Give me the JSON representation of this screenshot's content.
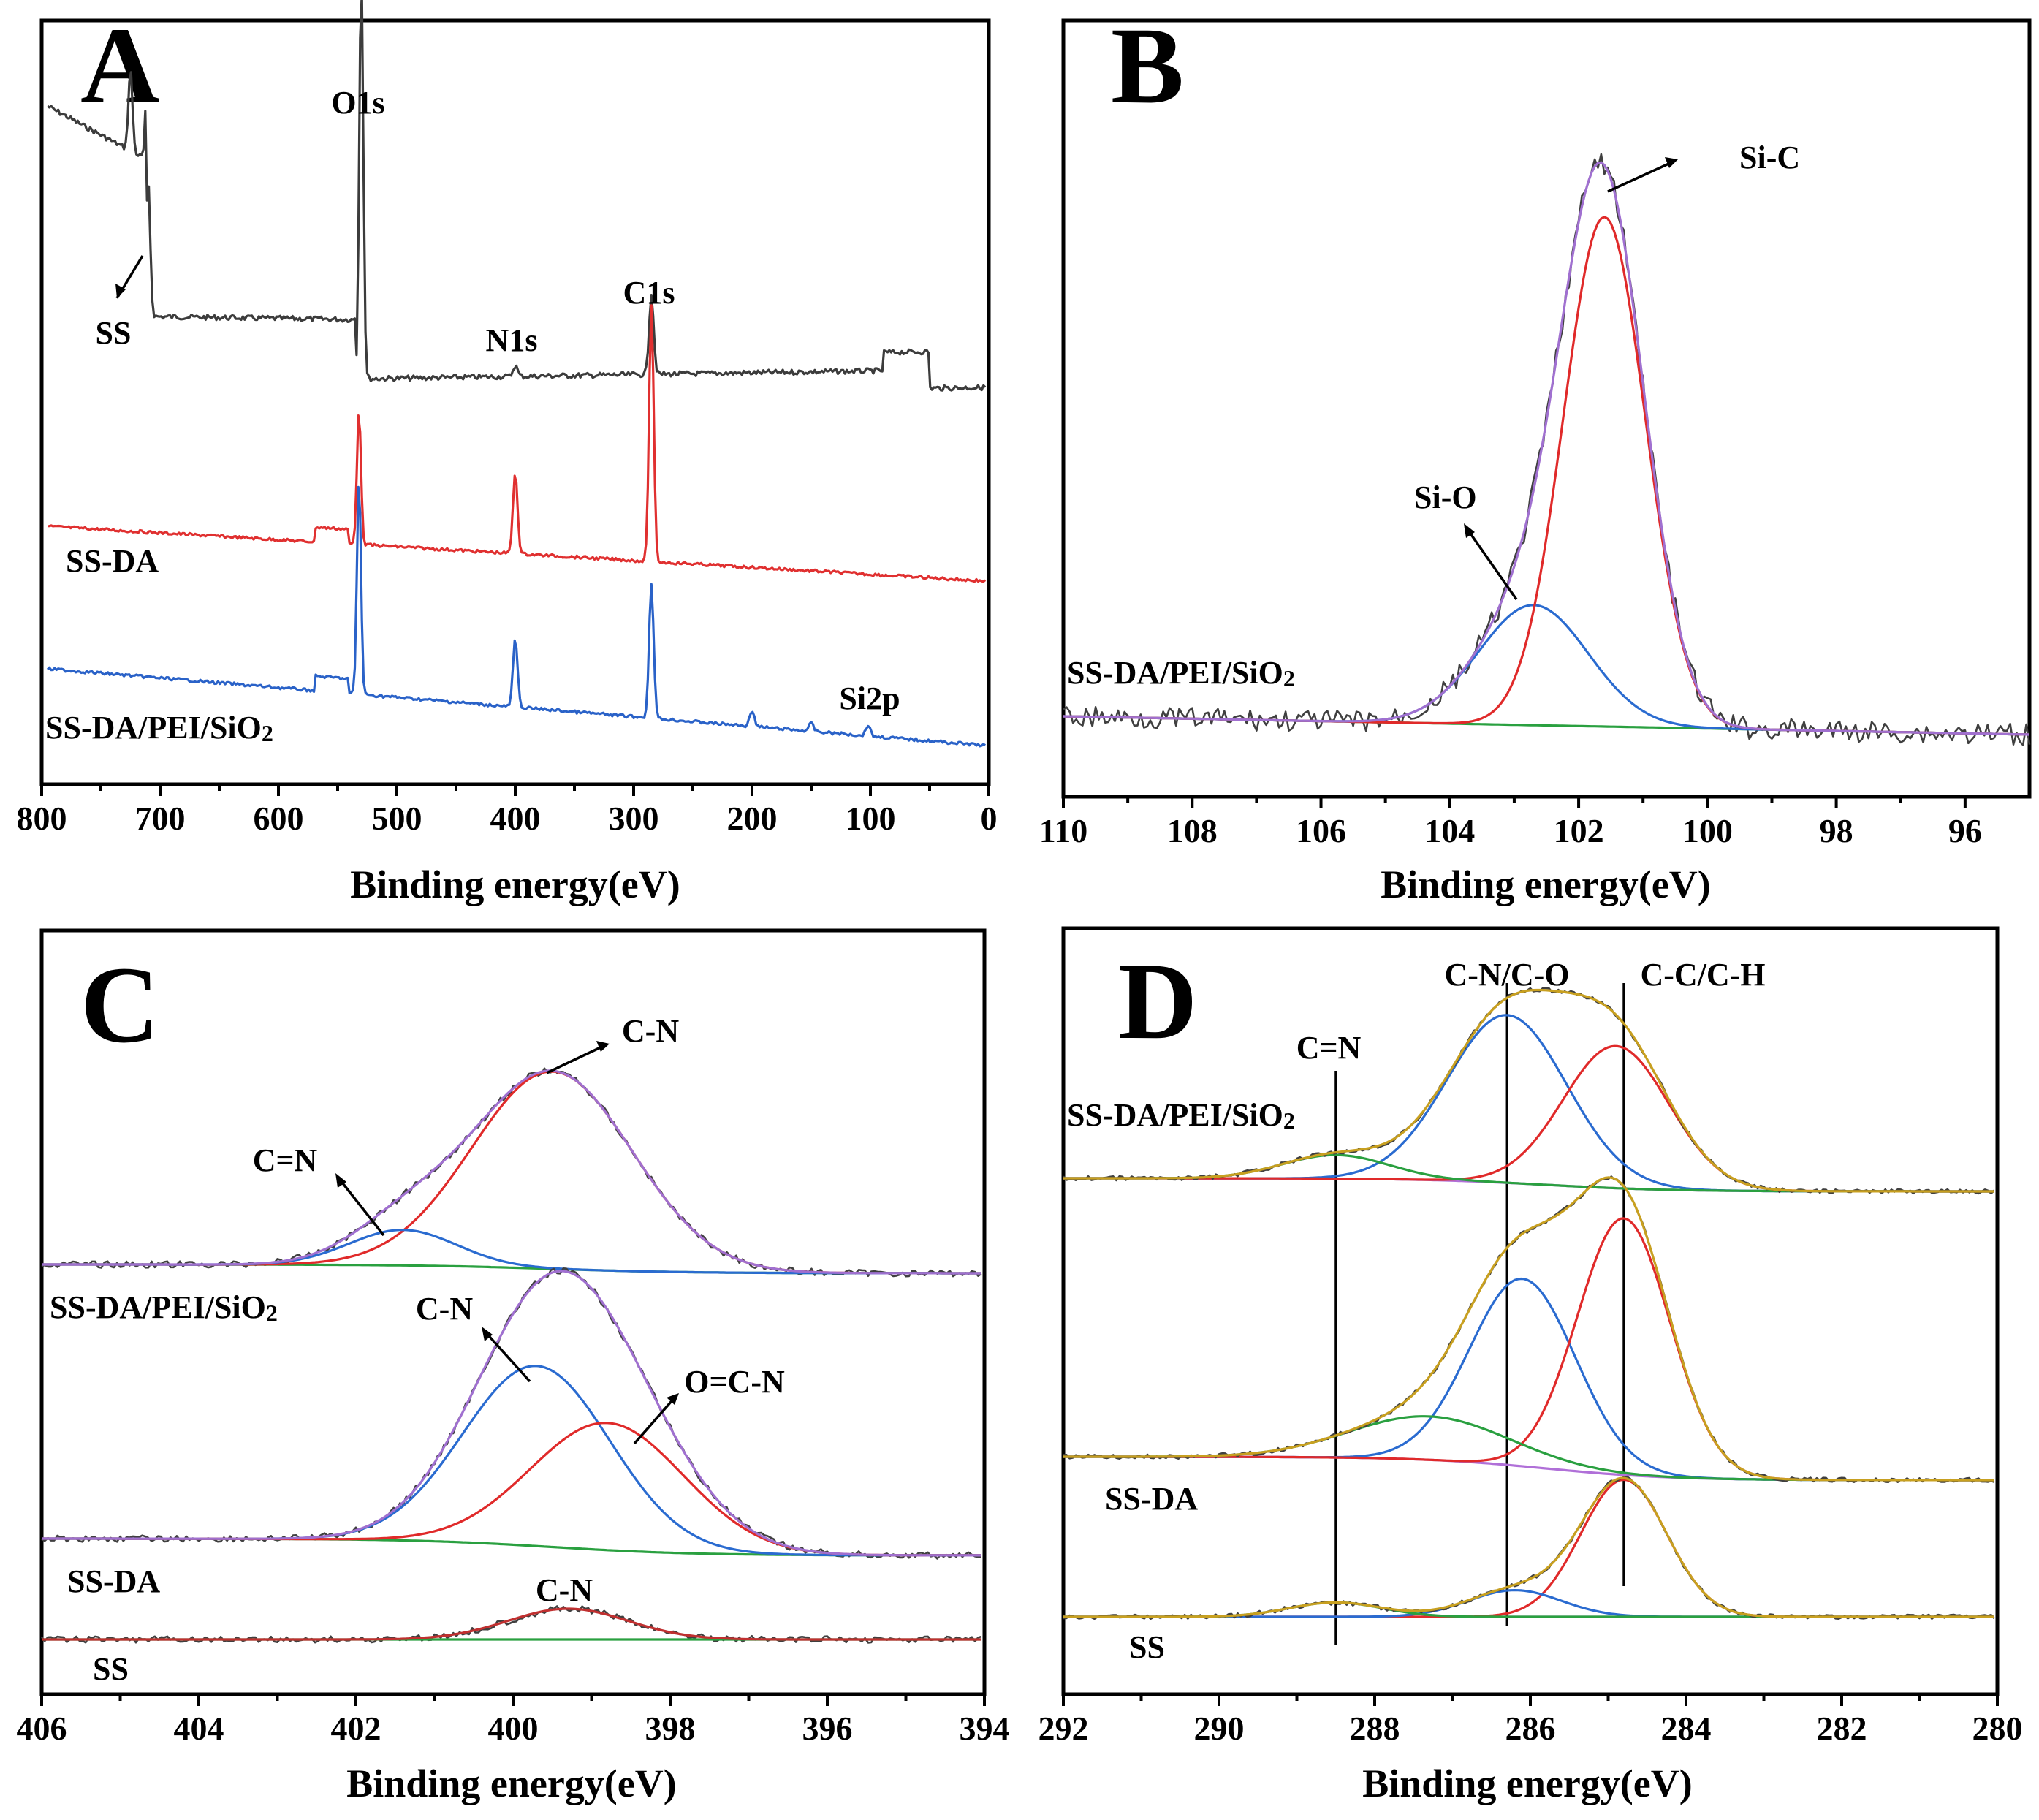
{
  "figure": "XPS spectra of SS, SS-DA and SS-DA/PEI/SiO2",
  "colors": {
    "survey_ss": "#3c3c3c",
    "survey_ssda": "#e03030",
    "survey_final": "#2a62c8",
    "raw": "#404040",
    "fit_envelope_purple": "#a070d0",
    "fit_envelope_gold": "#c8a020",
    "comp_red": "#e02a2a",
    "comp_blue": "#2a6bd0",
    "comp_green": "#2aa040",
    "baseline_violet": "#b070d8",
    "ss_fit_red": "#c03030"
  },
  "chart_data": [
    {
      "panel": "A",
      "type": "line",
      "title": "A",
      "xlabel": "Binding energy(eV)",
      "xlim": [
        800,
        0
      ],
      "xticks": [
        "800",
        "700",
        "600",
        "500",
        "400",
        "300",
        "200",
        "100",
        "0"
      ],
      "series": [
        {
          "name": "SS",
          "label": "SS",
          "peaks": [
            {
              "x": 725,
              "h": 0.6
            },
            {
              "x": 710,
              "h": 1.0
            },
            {
              "x": 530,
              "h": 3.0
            },
            {
              "x": 285,
              "h": 0.6
            },
            {
              "x": 400,
              "h": 0.08
            }
          ]
        },
        {
          "name": "SS-DA",
          "label": "SS-DA",
          "peaks": [
            {
              "x": 532,
              "h": 1.0
            },
            {
              "x": 400,
              "h": 0.6
            },
            {
              "x": 285,
              "h": 1.9
            }
          ]
        },
        {
          "name": "SS-DA/PEI/SiO2",
          "label": "SS-DA/PEI/SiO",
          "peaks": [
            {
              "x": 532,
              "h": 1.6
            },
            {
              "x": 400,
              "h": 0.5
            },
            {
              "x": 285,
              "h": 1.0
            },
            {
              "x": 200,
              "h": 0.12
            },
            {
              "x": 102,
              "h": 0.08
            },
            {
              "x": 150,
              "h": 0.06
            }
          ]
        }
      ],
      "annotations": [
        "O1s",
        "N1s",
        "C1s",
        "SS",
        "Si2p"
      ]
    },
    {
      "panel": "B",
      "type": "line",
      "title": "B",
      "xlabel": "Binding energy(eV)",
      "xlim": [
        110,
        95
      ],
      "xticks": [
        "110",
        "108",
        "106",
        "104",
        "102",
        "100",
        "98",
        "96"
      ],
      "series": [
        {
          "name": "Si-C",
          "center": 101.6,
          "fwhm": 1.5,
          "height": 0.84
        },
        {
          "name": "Si-O",
          "center": 102.7,
          "fwhm": 2.0,
          "height": 0.22
        },
        {
          "name": "Envelope",
          "type": "sum"
        }
      ],
      "series_label": "SS-DA/PEI/SiO",
      "annotations": [
        "Si-C",
        "Si-O"
      ]
    },
    {
      "panel": "C",
      "type": "line",
      "title": "C",
      "xlabel": "Binding energy(eV)",
      "xlim": [
        406,
        394
      ],
      "xticks": [
        "406",
        "404",
        "402",
        "400",
        "398",
        "396",
        "394"
      ],
      "series": [
        {
          "name": "SS-DA/PEI/SiO2",
          "components": [
            {
              "name": "C-N",
              "center": 399.5,
              "fwhm": 2.4,
              "height": 1.0
            },
            {
              "name": "C=N",
              "center": 401.4,
              "fwhm": 1.6,
              "height": 0.18
            }
          ]
        },
        {
          "name": "SS-DA",
          "components": [
            {
              "name": "C-N",
              "center": 399.7,
              "fwhm": 2.2,
              "height": 0.85
            },
            {
              "name": "O=C-N",
              "center": 398.8,
              "fwhm": 2.3,
              "height": 0.6
            }
          ]
        },
        {
          "name": "SS",
          "components": [
            {
              "name": "C-N",
              "center": 399.3,
              "fwhm": 1.8,
              "height": 0.14
            }
          ]
        }
      ],
      "series_labels": [
        "SS-DA/PEI/SiO",
        "SS-DA",
        "SS"
      ],
      "annotations": [
        "C-N",
        "C=N",
        "C-N",
        "O=C-N",
        "C-N"
      ]
    },
    {
      "panel": "D",
      "type": "line",
      "title": "D",
      "xlabel": "Binding energy(eV)",
      "xlim": [
        292,
        280
      ],
      "xticks": [
        "292",
        "290",
        "288",
        "286",
        "284",
        "282",
        "280"
      ],
      "series": [
        {
          "name": "SS-DA/PEI/SiO2",
          "components": [
            {
              "name": "C-N/C-O",
              "center": 286.3,
              "fwhm": 1.8,
              "height": 0.85
            },
            {
              "name": "C-C/C-H",
              "center": 284.9,
              "fwhm": 1.6,
              "height": 0.72
            },
            {
              "name": "C=N",
              "center": 288.5,
              "fwhm": 1.6,
              "height": 0.12
            }
          ]
        },
        {
          "name": "SS-DA",
          "components": [
            {
              "name": "C-N/C-O",
              "center": 286.1,
              "fwhm": 1.6,
              "height": 0.95
            },
            {
              "name": "C-C/C-H",
              "center": 284.8,
              "fwhm": 1.4,
              "height": 1.3
            },
            {
              "name": "C=N",
              "center": 287.3,
              "fwhm": 2.4,
              "height": 0.22
            }
          ]
        },
        {
          "name": "SS",
          "components": [
            {
              "name": "C-C/C-H",
              "center": 284.8,
              "fwhm": 1.3,
              "height": 0.67
            },
            {
              "name": "C-N/C-O",
              "center": 286.2,
              "fwhm": 1.4,
              "height": 0.13
            },
            {
              "name": "C=N",
              "center": 288.5,
              "fwhm": 1.4,
              "height": 0.07
            }
          ]
        }
      ],
      "guide_lines": [
        288.5,
        286.3,
        284.8
      ],
      "series_labels": [
        "SS-DA/PEI/SiO",
        "SS-DA",
        "SS"
      ],
      "annotations": [
        "C=N",
        "C-N/C-O",
        "C-C/C-H"
      ]
    }
  ],
  "labels": {
    "A": "A",
    "B": "B",
    "C": "C",
    "D": "D",
    "xlabel": "Binding energy(eV)",
    "subscript_2": "2"
  }
}
